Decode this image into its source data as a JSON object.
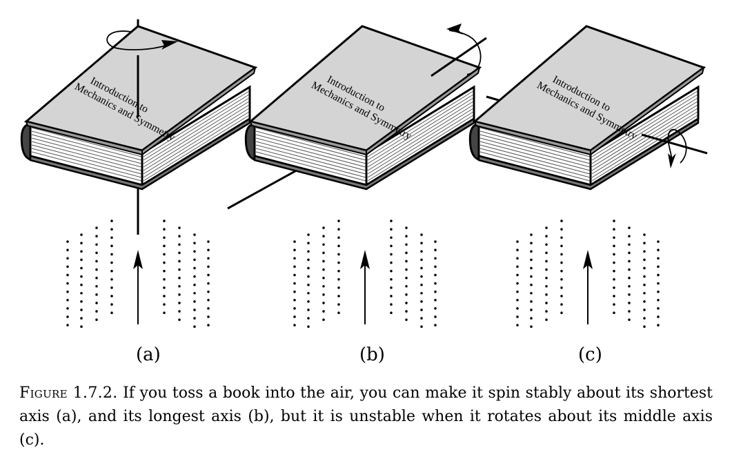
{
  "figure": {
    "book_title_line1": "Introduction to",
    "book_title_line2": "Mechanics and Symmetry",
    "panels": [
      {
        "label": "(a)",
        "axis": "shortest"
      },
      {
        "label": "(b)",
        "axis": "longest"
      },
      {
        "label": "(c)",
        "axis": "middle"
      }
    ]
  },
  "caption": {
    "label": "Figure 1.7.2.",
    "text": "If you toss a book into the air, you can make it spin stably about its shortest axis (a), and its longest axis (b), but it is unstable when it rotates about its middle axis (c)."
  }
}
